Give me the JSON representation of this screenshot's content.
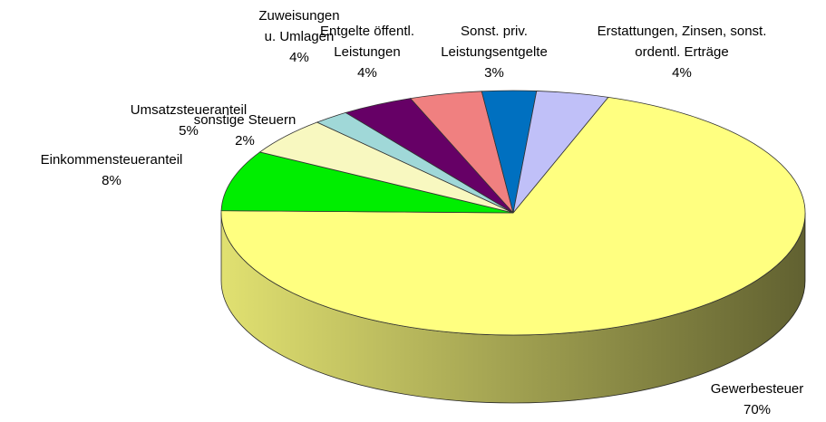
{
  "chart_data": {
    "type": "pie",
    "categories": [
      "Gewerbesteuer",
      "Einkommensteueranteil",
      "Umsatzsteueranteil",
      "sonstige Steuern",
      "Zuweisungen u. Umlagen",
      "Entgelte öffentl. Leistungen",
      "Sonst. priv. Leistungsentgelte",
      "Erstattungen, Zinsen, sonst. ordentl. Erträge"
    ],
    "values": [
      70,
      8,
      5,
      2,
      4,
      4,
      3,
      4
    ],
    "value_labels": [
      "70%",
      "8%",
      "5%",
      "2%",
      "4%",
      "4%",
      "3%",
      "4%"
    ],
    "colors": [
      "#ffff80",
      "#00ee00",
      "#f8f8c0",
      "#a0d8d8",
      "#660066",
      "#f08080",
      "#0070c0",
      "#c0c0f8"
    ]
  }
}
